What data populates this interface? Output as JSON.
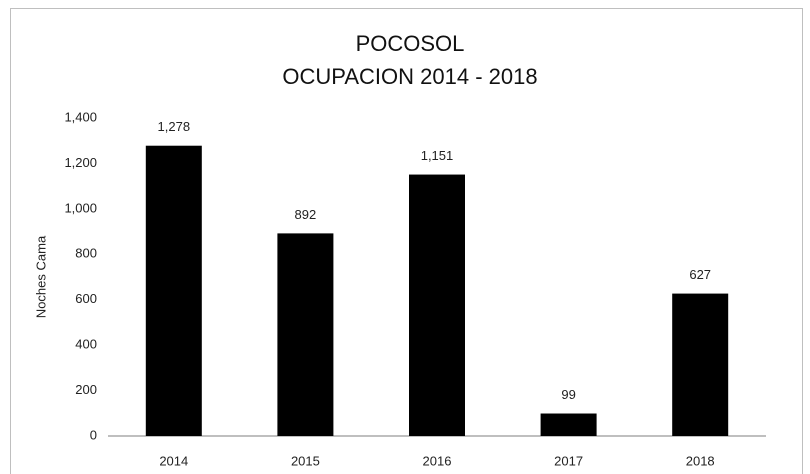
{
  "chart_data": {
    "type": "bar",
    "title": "POCOSOL",
    "subtitle": "OCUPACION 2014 - 2018",
    "y_label": "Noches Cama",
    "categories": [
      "2014",
      "2015",
      "2016",
      "2017",
      "2018"
    ],
    "values": [
      1278,
      892,
      1151,
      99,
      627
    ],
    "value_labels": [
      "1,278",
      "892",
      "1,151",
      "99",
      "627"
    ],
    "color": "#000000",
    "ylim": [
      0,
      1400
    ],
    "yticks": [
      0,
      200,
      400,
      600,
      800,
      {
        "value": 1000,
        "label": "1,000"
      },
      {
        "value": 1200,
        "label": "1,200"
      },
      {
        "value": 1400,
        "label": "1,400"
      }
    ],
    "grid": false
  }
}
